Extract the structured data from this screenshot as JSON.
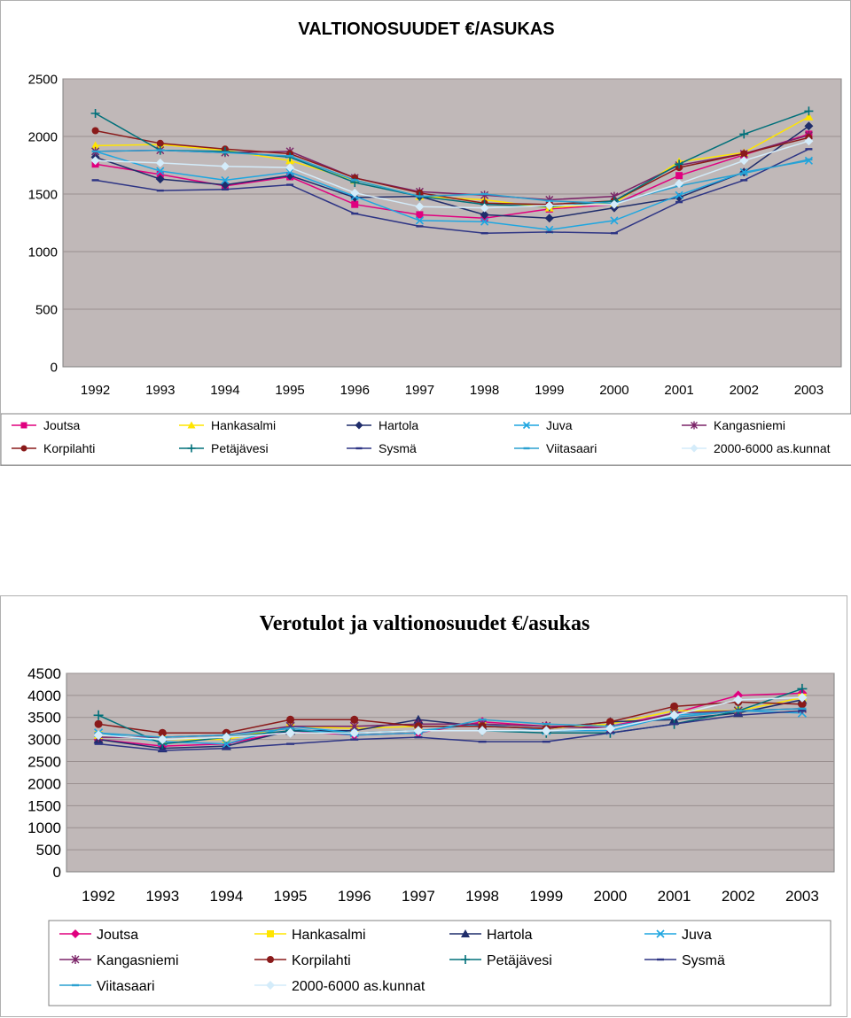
{
  "colors": {
    "plot_bg": "#c0b8b8",
    "Joutsa": "#e0007f",
    "Hankasalmi": "#ffe500",
    "Hartola": "#1f2d6b",
    "Juva": "#1ea6e0",
    "Kangasniemi": "#7b2468",
    "Korpilahti": "#8a1a1a",
    "Petajavesi": "#00707a",
    "Sysma": "#2d3484",
    "Viitasaari": "#2aa0d0",
    "kunnat": "#d4ecfa"
  },
  "chart_data": [
    {
      "type": "line",
      "title": "VALTIONOSUUDET €/ASUKAS",
      "xlabel": "",
      "ylabel": "",
      "categories": [
        "1992",
        "1993",
        "1994",
        "1995",
        "1996",
        "1997",
        "1998",
        "1999",
        "2000",
        "2001",
        "2002",
        "2003"
      ],
      "yticks": [
        "0",
        "500",
        "1000",
        "1500",
        "2000",
        "2500"
      ],
      "ylim": [
        0,
        2500
      ],
      "grid": true,
      "legend": "bottom",
      "legend_rows": [
        [
          "Joutsa",
          "Hankasalmi",
          "Hartola",
          "Juva",
          "Kangasniemi"
        ],
        [
          "Korpilahti",
          "Petäjävesi",
          "Sysmä",
          "Viitasaari",
          "2000-6000 as.kunnat"
        ]
      ],
      "series": [
        {
          "name": "Joutsa",
          "values": [
            1760,
            1670,
            1570,
            1650,
            1410,
            1320,
            1290,
            1370,
            1410,
            1660,
            1840,
            2020
          ]
        },
        {
          "name": "Hankasalmi",
          "values": [
            1920,
            1930,
            1880,
            1790,
            1620,
            1480,
            1450,
            1380,
            1420,
            1780,
            1860,
            2170
          ]
        },
        {
          "name": "Hartola",
          "values": [
            1820,
            1630,
            1580,
            1660,
            1470,
            1480,
            1320,
            1290,
            1380,
            1470,
            1690,
            2090
          ]
        },
        {
          "name": "Juva",
          "values": [
            1870,
            1700,
            1620,
            1690,
            1480,
            1270,
            1260,
            1190,
            1270,
            1490,
            1690,
            1790
          ]
        },
        {
          "name": "Kangasniemi",
          "values": [
            1870,
            1880,
            1860,
            1870,
            1640,
            1520,
            1490,
            1450,
            1480,
            1750,
            1850,
            2010
          ]
        },
        {
          "name": "Korpilahti",
          "values": [
            2050,
            1940,
            1890,
            1850,
            1640,
            1510,
            1420,
            1410,
            1440,
            1730,
            1850,
            1990
          ]
        },
        {
          "name": "Petäjävesi",
          "values": [
            2200,
            1880,
            1870,
            1820,
            1600,
            1480,
            1410,
            1390,
            1440,
            1760,
            2020,
            2220
          ]
        },
        {
          "name": "Sysmä",
          "values": [
            1620,
            1530,
            1540,
            1580,
            1330,
            1220,
            1160,
            1170,
            1160,
            1430,
            1620,
            1890
          ]
        },
        {
          "name": "Viitasaari",
          "values": [
            1870,
            1880,
            1860,
            1830,
            1620,
            1480,
            1500,
            1440,
            1420,
            1570,
            1680,
            1800
          ]
        },
        {
          "name": "2000-6000 as.kunnat",
          "values": [
            1790,
            1770,
            1740,
            1730,
            1510,
            1390,
            1380,
            1400,
            1410,
            1590,
            1790,
            1960
          ]
        }
      ]
    },
    {
      "type": "line",
      "title": "Verotulot ja valtionosuudet €/asukas",
      "xlabel": "",
      "ylabel": "",
      "categories": [
        "1992",
        "1993",
        "1994",
        "1995",
        "1996",
        "1997",
        "1998",
        "1999",
        "2000",
        "2001",
        "2002",
        "2003"
      ],
      "yticks": [
        "0",
        "500",
        "1000",
        "1500",
        "2000",
        "2500",
        "3000",
        "3500",
        "4000",
        "4500"
      ],
      "ylim": [
        0,
        4500
      ],
      "grid": true,
      "legend": "bottom",
      "legend_rows": [
        [
          "Joutsa",
          "Hankasalmi",
          "Hartola",
          "Juva"
        ],
        [
          "Kangasniemi",
          "Korpilahti",
          "Petäjävesi",
          "Sysmä"
        ],
        [
          "Viitasaari",
          "2000-6000 as.kunnat"
        ]
      ],
      "series": [
        {
          "name": "Joutsa",
          "values": [
            3000,
            2850,
            2900,
            3200,
            3100,
            3150,
            3400,
            3300,
            3300,
            3600,
            4000,
            4050
          ]
        },
        {
          "name": "Hankasalmi",
          "values": [
            3100,
            3000,
            3000,
            3300,
            3250,
            3300,
            3300,
            3250,
            3350,
            3650,
            3650,
            3950
          ]
        },
        {
          "name": "Hartola",
          "values": [
            3000,
            2800,
            2850,
            3200,
            3200,
            3450,
            3300,
            3250,
            3400,
            3450,
            3600,
            3900
          ]
        },
        {
          "name": "Juva",
          "values": [
            3150,
            2950,
            2900,
            3300,
            3150,
            3200,
            3350,
            3200,
            3200,
            3550,
            3650,
            3600
          ]
        },
        {
          "name": "Kangasniemi",
          "values": [
            3050,
            3050,
            3100,
            3300,
            3300,
            3350,
            3350,
            3300,
            3250,
            3600,
            3650,
            3700
          ]
        },
        {
          "name": "Korpilahti",
          "values": [
            3350,
            3150,
            3150,
            3450,
            3450,
            3300,
            3300,
            3250,
            3400,
            3750,
            3850,
            3800
          ]
        },
        {
          "name": "Petäjävesi",
          "values": [
            3550,
            2900,
            3050,
            3200,
            3150,
            3200,
            3200,
            3150,
            3150,
            3350,
            3650,
            4150
          ]
        },
        {
          "name": "Sysmä",
          "values": [
            2900,
            2750,
            2800,
            2900,
            3000,
            3050,
            2950,
            2950,
            3150,
            3350,
            3550,
            3650
          ]
        },
        {
          "name": "Viitasaari",
          "values": [
            3150,
            3050,
            3100,
            3250,
            3100,
            3150,
            3450,
            3350,
            3300,
            3500,
            3650,
            3700
          ]
        },
        {
          "name": "2000-6000 as.kunnat",
          "values": [
            3100,
            3000,
            3050,
            3150,
            3150,
            3200,
            3200,
            3200,
            3250,
            3550,
            3900,
            3950
          ]
        }
      ]
    }
  ]
}
